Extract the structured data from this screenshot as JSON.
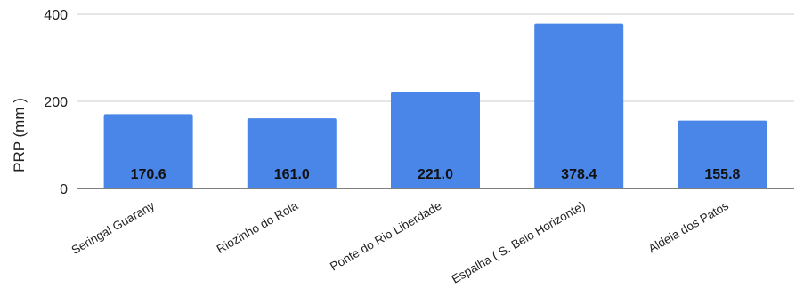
{
  "chart_data": {
    "type": "bar",
    "title": "",
    "xlabel": "",
    "ylabel": "PRP (mm )",
    "categories": [
      "Seringal Guarany",
      "Riozinho do Rola",
      "Ponte do Rio Liberdade",
      "Espalha ( S. Belo Horizonte)",
      "Aldeia dos Patos"
    ],
    "values": [
      170.6,
      161.0,
      221.0,
      378.4,
      155.8
    ],
    "data_labels": [
      "170.6",
      "161.0",
      "221.0",
      "378.4",
      "155.8"
    ],
    "ylim": [
      0,
      400
    ],
    "yticks": [
      0,
      200,
      400
    ],
    "grid": true,
    "legend": "none",
    "bar_color": "#4a86e8",
    "grid_color": "#cccccc",
    "axis_color": "#333333"
  }
}
